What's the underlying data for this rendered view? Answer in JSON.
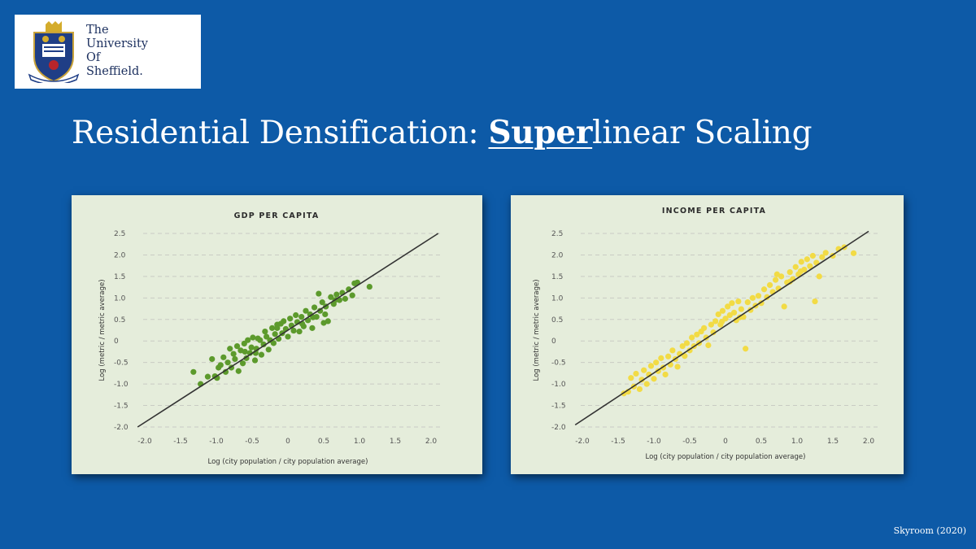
{
  "logo": {
    "line1": "The",
    "line2": "University",
    "line3": "Of",
    "line4": "Sheffield."
  },
  "slide": {
    "title_pre": "Residential Densification: ",
    "title_emph": "Super",
    "title_post": "linear Scaling",
    "credit": "Skyroom (2020)"
  },
  "colors": {
    "background": "#0d5aa7",
    "panel": "#e5eddb",
    "gdp_points": "#5c9a2c",
    "income_points": "#f2db45",
    "fit_line": "#333333"
  },
  "chart_data": [
    {
      "type": "scatter",
      "title": "GDP PER CAPITA",
      "xlabel": "Log (city population / city population average)",
      "ylabel": "Log (metric / metric average)",
      "xlim": [
        -2.0,
        2.0
      ],
      "ylim": [
        -2.0,
        2.5
      ],
      "xticks": [
        "-2.0",
        "-1.5",
        "-1.0",
        "-0.5",
        "0",
        "0.5",
        "1.0",
        "1.5",
        "2.0"
      ],
      "yticks": [
        "2.5",
        "2.0",
        "1.5",
        "1.0",
        "0.5",
        "0",
        "-0.5",
        "-1.0",
        "-1.5",
        "-2.0"
      ],
      "grid": "horizontal-dashed",
      "line": {
        "x": [
          -2.1,
          2.1
        ],
        "y": [
          -2.0,
          2.5
        ]
      },
      "point_color": "#5c9a2c",
      "points": [
        [
          -1.32,
          -0.72
        ],
        [
          -1.22,
          -1.0
        ],
        [
          -1.12,
          -0.83
        ],
        [
          -1.06,
          -0.42
        ],
        [
          -1.02,
          -0.82
        ],
        [
          -0.99,
          -0.86
        ],
        [
          -0.97,
          -0.62
        ],
        [
          -0.94,
          -0.56
        ],
        [
          -0.9,
          -0.38
        ],
        [
          -0.87,
          -0.72
        ],
        [
          -0.84,
          -0.5
        ],
        [
          -0.81,
          -0.18
        ],
        [
          -0.79,
          -0.62
        ],
        [
          -0.76,
          -0.3
        ],
        [
          -0.74,
          -0.42
        ],
        [
          -0.71,
          -0.12
        ],
        [
          -0.69,
          -0.7
        ],
        [
          -0.66,
          -0.22
        ],
        [
          -0.63,
          -0.52
        ],
        [
          -0.61,
          -0.06
        ],
        [
          -0.58,
          -0.4
        ],
        [
          -0.56,
          0.02
        ],
        [
          -0.53,
          -0.28
        ],
        [
          -0.51,
          -0.15
        ],
        [
          -0.49,
          0.08
        ],
        [
          -0.46,
          -0.45
        ],
        [
          -0.44,
          -0.18
        ],
        [
          -0.42,
          0.06
        ],
        [
          -0.39,
          0.02
        ],
        [
          -0.37,
          -0.32
        ],
        [
          -0.34,
          -0.08
        ],
        [
          -0.32,
          0.22
        ],
        [
          -0.3,
          0.1
        ],
        [
          -0.27,
          -0.2
        ],
        [
          -0.25,
          0.02
        ],
        [
          -0.22,
          0.3
        ],
        [
          -0.2,
          -0.05
        ],
        [
          -0.18,
          0.16
        ],
        [
          -0.15,
          0.38
        ],
        [
          -0.13,
          0.05
        ],
        [
          -0.1,
          0.4
        ],
        [
          -0.08,
          0.18
        ],
        [
          -0.06,
          0.46
        ],
        [
          -0.03,
          0.28
        ],
        [
          0.0,
          0.1
        ],
        [
          0.03,
          0.52
        ],
        [
          0.05,
          0.36
        ],
        [
          0.08,
          0.24
        ],
        [
          0.11,
          0.6
        ],
        [
          0.13,
          0.44
        ],
        [
          0.16,
          0.22
        ],
        [
          0.19,
          0.56
        ],
        [
          0.22,
          0.34
        ],
        [
          0.25,
          0.7
        ],
        [
          0.28,
          0.48
        ],
        [
          0.31,
          0.62
        ],
        [
          0.34,
          0.3
        ],
        [
          0.37,
          0.78
        ],
        [
          0.4,
          0.56
        ],
        [
          0.43,
          1.1
        ],
        [
          0.45,
          0.7
        ],
        [
          0.48,
          0.9
        ],
        [
          0.5,
          0.42
        ],
        [
          0.53,
          0.8
        ],
        [
          0.56,
          0.46
        ],
        [
          0.6,
          1.02
        ],
        [
          0.64,
          0.86
        ],
        [
          0.68,
          1.08
        ],
        [
          0.72,
          0.95
        ],
        [
          0.76,
          1.12
        ],
        [
          0.8,
          0.98
        ],
        [
          0.85,
          1.2
        ],
        [
          0.9,
          1.06
        ],
        [
          0.93,
          1.34
        ],
        [
          0.97,
          1.36
        ],
        [
          1.14,
          1.26
        ],
        [
          0.52,
          0.62
        ],
        [
          -0.15,
          0.3
        ],
        [
          0.2,
          0.4
        ],
        [
          -0.45,
          -0.28
        ],
        [
          0.35,
          0.55
        ],
        [
          -0.6,
          -0.25
        ],
        [
          0.66,
          0.95
        ]
      ]
    },
    {
      "type": "scatter",
      "title": "INCOME PER CAPITA",
      "xlabel": "Log (city population / city population average)",
      "ylabel": "Log (metric / metric average)",
      "xlim": [
        -2.0,
        2.0
      ],
      "ylim": [
        -2.0,
        2.5
      ],
      "xticks": [
        "-2.0",
        "-1.5",
        "-1.0",
        "-0.5",
        "0",
        "0.5",
        "1.0",
        "1.5",
        "2.0"
      ],
      "yticks": [
        "2.5",
        "2.0",
        "1.5",
        "1.0",
        "0.5",
        "0",
        "-0.5",
        "-1.0",
        "-1.5",
        "-2.0"
      ],
      "grid": "horizontal-dashed",
      "line": {
        "x": [
          -2.1,
          2.0
        ],
        "y": [
          -1.95,
          2.55
        ]
      },
      "point_color": "#f2db45",
      "points": [
        [
          -1.42,
          -1.22
        ],
        [
          -1.36,
          -1.18
        ],
        [
          -1.32,
          -0.86
        ],
        [
          -1.28,
          -1.06
        ],
        [
          -1.25,
          -0.76
        ],
        [
          -1.2,
          -1.12
        ],
        [
          -1.17,
          -0.9
        ],
        [
          -1.14,
          -0.68
        ],
        [
          -1.1,
          -1.0
        ],
        [
          -1.07,
          -0.78
        ],
        [
          -1.04,
          -0.58
        ],
        [
          -1.0,
          -0.88
        ],
        [
          -0.97,
          -0.5
        ],
        [
          -0.94,
          -0.7
        ],
        [
          -0.9,
          -0.4
        ],
        [
          -0.87,
          -0.62
        ],
        [
          -0.84,
          -0.78
        ],
        [
          -0.8,
          -0.36
        ],
        [
          -0.77,
          -0.55
        ],
        [
          -0.74,
          -0.22
        ],
        [
          -0.7,
          -0.42
        ],
        [
          -0.67,
          -0.6
        ],
        [
          -0.64,
          -0.3
        ],
        [
          -0.6,
          -0.12
        ],
        [
          -0.57,
          -0.35
        ],
        [
          -0.54,
          -0.05
        ],
        [
          -0.5,
          -0.22
        ],
        [
          -0.47,
          0.08
        ],
        [
          -0.44,
          -0.12
        ],
        [
          -0.4,
          0.15
        ],
        [
          -0.37,
          -0.05
        ],
        [
          -0.34,
          0.22
        ],
        [
          -0.3,
          0.3
        ],
        [
          -0.27,
          0.08
        ],
        [
          -0.24,
          -0.1
        ],
        [
          -0.2,
          0.38
        ],
        [
          -0.17,
          0.2
        ],
        [
          -0.14,
          0.46
        ],
        [
          -0.1,
          0.62
        ],
        [
          -0.07,
          0.38
        ],
        [
          -0.04,
          0.7
        ],
        [
          0.0,
          0.52
        ],
        [
          0.03,
          0.8
        ],
        [
          0.06,
          0.6
        ],
        [
          0.09,
          0.88
        ],
        [
          0.12,
          0.66
        ],
        [
          0.15,
          0.48
        ],
        [
          0.18,
          0.92
        ],
        [
          0.22,
          0.74
        ],
        [
          0.25,
          0.56
        ],
        [
          0.28,
          -0.18
        ],
        [
          0.31,
          0.9
        ],
        [
          0.35,
          0.72
        ],
        [
          0.38,
          1.0
        ],
        [
          0.42,
          0.82
        ],
        [
          0.46,
          1.05
        ],
        [
          0.5,
          0.88
        ],
        [
          0.54,
          1.2
        ],
        [
          0.58,
          1.02
        ],
        [
          0.62,
          1.3
        ],
        [
          0.66,
          1.14
        ],
        [
          0.7,
          1.42
        ],
        [
          0.74,
          1.22
        ],
        [
          0.78,
          1.5
        ],
        [
          0.82,
          0.8
        ],
        [
          0.86,
          1.36
        ],
        [
          0.9,
          1.6
        ],
        [
          0.94,
          1.44
        ],
        [
          0.98,
          1.72
        ],
        [
          1.02,
          1.55
        ],
        [
          1.06,
          1.84
        ],
        [
          1.1,
          1.66
        ],
        [
          1.14,
          1.9
        ],
        [
          1.18,
          1.74
        ],
        [
          1.22,
          1.98
        ],
        [
          1.27,
          1.82
        ],
        [
          1.31,
          1.5
        ],
        [
          1.25,
          0.92
        ],
        [
          1.35,
          1.95
        ],
        [
          1.4,
          2.05
        ],
        [
          1.5,
          1.98
        ],
        [
          1.58,
          2.14
        ],
        [
          1.66,
          2.18
        ],
        [
          1.79,
          2.04
        ],
        [
          0.72,
          1.55
        ],
        [
          0.9,
          1.38
        ],
        [
          -0.05,
          0.45
        ],
        [
          0.2,
          0.55
        ],
        [
          1.05,
          1.62
        ]
      ]
    }
  ]
}
